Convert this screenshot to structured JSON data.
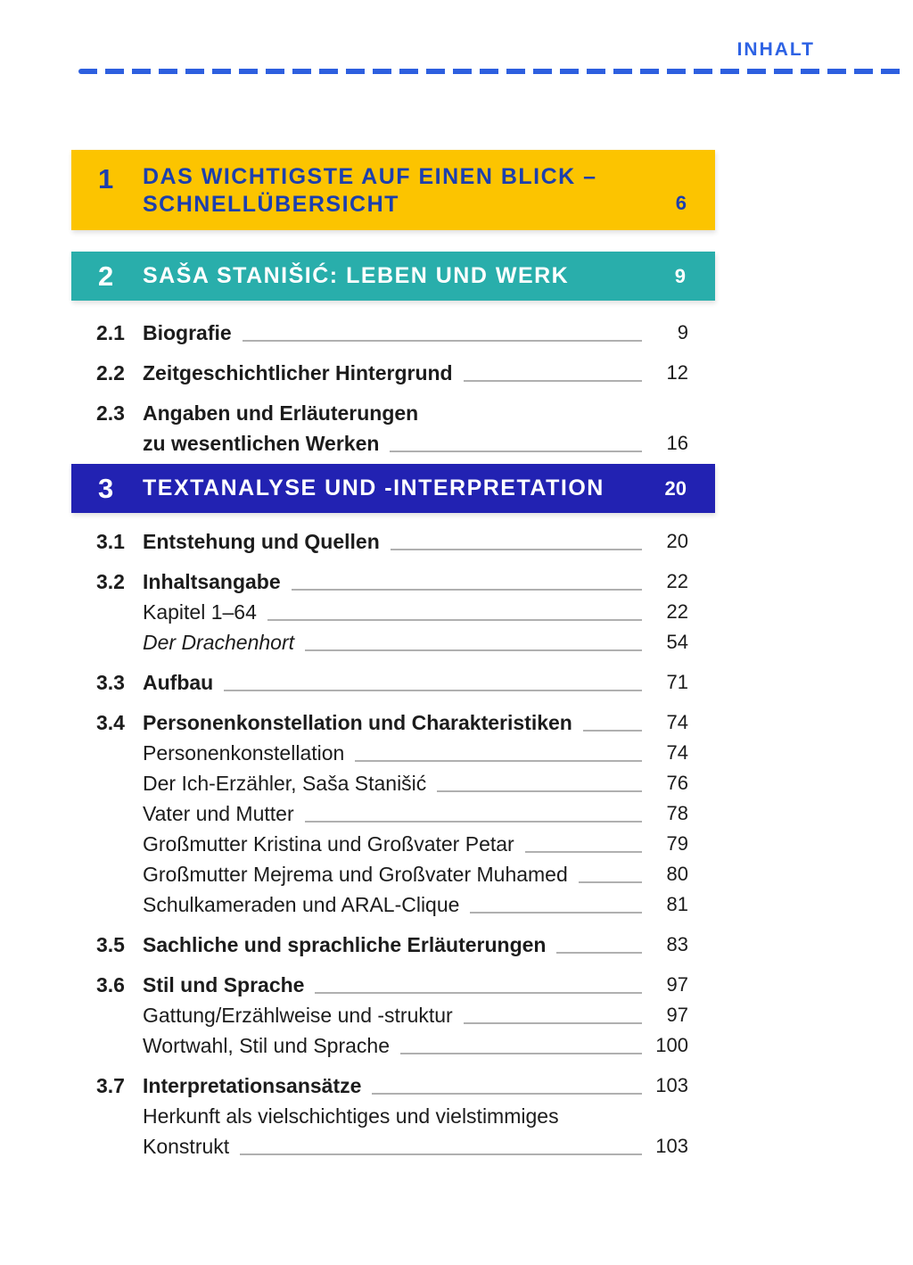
{
  "header": {
    "label": "INHALT"
  },
  "colors": {
    "yellow_bar": "#fcc400",
    "teal_bar": "#29aeab",
    "blue_bar": "#2222b2",
    "heading_text_on_yellow": "#1c3fae",
    "accent_blue": "#2d62e4",
    "leader_gray": "#b0b0b0"
  },
  "bars": [
    {
      "number": "1",
      "line1": "DAS WICHTIGSTE AUF EINEN BLICK –",
      "line2": "SCHNELLÜBERSICHT",
      "page": "6"
    },
    {
      "number": "2",
      "line1": "SAŠA STANIŠIĆ: LEBEN UND WERK",
      "line2": "",
      "page": "9"
    },
    {
      "number": "3",
      "line1": "TEXTANALYSE UND -INTERPRETATION",
      "line2": "",
      "page": "20"
    }
  ],
  "entries": [
    {
      "number": "2.1",
      "text": "Biografie",
      "page": "9",
      "level": "main"
    },
    {
      "number": "2.2",
      "text": "Zeitgeschichtlicher Hintergrund",
      "page": "12",
      "level": "main"
    },
    {
      "number": "2.3",
      "text": "Angaben und Erläuterungen",
      "page": "",
      "level": "main"
    },
    {
      "number": "",
      "text": "zu wesentlichen Werken",
      "page": "16",
      "level": "main-continuation"
    },
    {
      "number": "3.1",
      "text": "Entstehung und Quellen",
      "page": "20",
      "level": "main"
    },
    {
      "number": "3.2",
      "text": "Inhaltsangabe",
      "page": "22",
      "level": "main"
    },
    {
      "number": "",
      "text": "Kapitel 1–64",
      "page": "22",
      "level": "sub"
    },
    {
      "number": "",
      "text": "Der Drachenhort",
      "page": "54",
      "level": "sub",
      "italic": true
    },
    {
      "number": "3.3",
      "text": "Aufbau",
      "page": "71",
      "level": "main"
    },
    {
      "number": "3.4",
      "text": "Personenkonstellation und Charakteristiken",
      "page": "74",
      "level": "main"
    },
    {
      "number": "",
      "text": "Personenkonstellation",
      "page": "74",
      "level": "sub"
    },
    {
      "number": "",
      "text": "Der Ich-Erzähler, Saša Stanišić",
      "page": "76",
      "level": "sub"
    },
    {
      "number": "",
      "text": "Vater und Mutter",
      "page": "78",
      "level": "sub"
    },
    {
      "number": "",
      "text": "Großmutter Kristina und Großvater Petar",
      "page": "79",
      "level": "sub"
    },
    {
      "number": "",
      "text": "Großmutter Mejrema und Großvater Muhamed",
      "page": "80",
      "level": "sub"
    },
    {
      "number": "",
      "text": "Schulkameraden und ARAL-Clique",
      "page": "81",
      "level": "sub"
    },
    {
      "number": "3.5",
      "text": "Sachliche und sprachliche Erläuterungen",
      "page": "83",
      "level": "main"
    },
    {
      "number": "3.6",
      "text": "Stil und Sprache",
      "page": "97",
      "level": "main"
    },
    {
      "number": "",
      "text": "Gattung/Erzählweise und -struktur",
      "page": "97",
      "level": "sub"
    },
    {
      "number": "",
      "text": "Wortwahl, Stil und Sprache",
      "page": "100",
      "level": "sub"
    },
    {
      "number": "3.7",
      "text": "Interpretationsansätze",
      "page": "103",
      "level": "main"
    },
    {
      "number": "",
      "text": "Herkunft als vielschichtiges und vielstimmiges",
      "page": "",
      "level": "sub"
    },
    {
      "number": "",
      "text": "Konstrukt",
      "page": "103",
      "level": "sub"
    }
  ]
}
